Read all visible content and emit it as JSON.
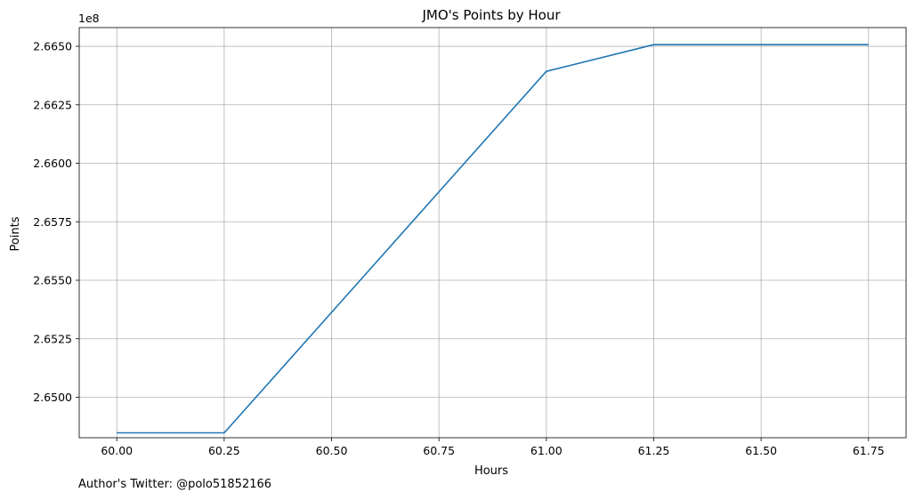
{
  "chart_data": {
    "type": "line",
    "title": "JMO's Points by Hour",
    "xlabel": "Hours",
    "ylabel": "Points",
    "y_offset_label": "1e8",
    "xlim": [
      59.9125,
      61.8375
    ],
    "ylim": [
      2.64827,
      2.6658
    ],
    "x_ticks": [
      "60.00",
      "60.25",
      "60.50",
      "60.75",
      "61.00",
      "61.25",
      "61.50",
      "61.75"
    ],
    "y_ticks": [
      "2.6500",
      "2.6525",
      "2.6550",
      "2.6575",
      "2.6600",
      "2.6625",
      "2.6650"
    ],
    "grid": true,
    "series": [
      {
        "color": "#1f77b4",
        "x": [
          60.0,
          60.25,
          61.0,
          61.25,
          61.5,
          61.75
        ],
        "y": [
          2.64848,
          2.64848,
          2.66393,
          2.66507,
          2.66507,
          2.66507
        ]
      }
    ]
  },
  "footnote": "Author's Twitter: @polo51852166"
}
